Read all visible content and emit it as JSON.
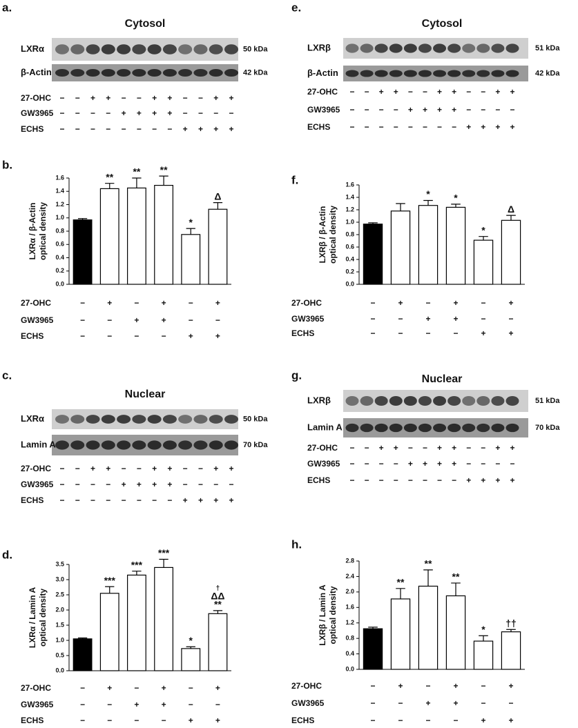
{
  "blots": [
    {
      "letter": "a.",
      "title": "Cytosol",
      "rows": [
        {
          "label": "LXRα",
          "kda": "50 kDa"
        },
        {
          "label": "β-Actin",
          "kda": "42 kDa"
        }
      ],
      "conditions": [
        {
          "name": "27-OHC",
          "signs": [
            "−",
            "−",
            "+",
            "+",
            "−",
            "−",
            "+",
            "+",
            "−",
            "−",
            "+",
            "+"
          ]
        },
        {
          "name": "GW3965",
          "signs": [
            "−",
            "−",
            "−",
            "−",
            "+",
            "+",
            "+",
            "+",
            "−",
            "−",
            "−",
            "−"
          ]
        },
        {
          "name": "ECHS",
          "signs": [
            "−",
            "−",
            "−",
            "−",
            "−",
            "−",
            "−",
            "−",
            "+",
            "+",
            "+",
            "+"
          ]
        }
      ]
    },
    {
      "letter": "e.",
      "title": "Cytosol",
      "rows": [
        {
          "label": "LXRβ",
          "kda": "51 kDa"
        },
        {
          "label": "β-Actin",
          "kda": "42 kDa"
        }
      ],
      "conditions": [
        {
          "name": "27-OHC",
          "signs": [
            "−",
            "−",
            "+",
            "+",
            "−",
            "−",
            "+",
            "+",
            "−",
            "−",
            "+",
            "+"
          ]
        },
        {
          "name": "GW3965",
          "signs": [
            "−",
            "−",
            "−",
            "−",
            "+",
            "+",
            "+",
            "+",
            "−",
            "−",
            "−",
            "−"
          ]
        },
        {
          "name": "ECHS",
          "signs": [
            "−",
            "−",
            "−",
            "−",
            "−",
            "−",
            "−",
            "−",
            "+",
            "+",
            "+",
            "+"
          ]
        }
      ]
    },
    {
      "letter": "c.",
      "title": "Nuclear",
      "rows": [
        {
          "label": "LXRα",
          "kda": "50 kDa"
        },
        {
          "label": "Lamin A",
          "kda": "70 kDa"
        }
      ],
      "conditions": [
        {
          "name": "27-OHC",
          "signs": [
            "−",
            "−",
            "+",
            "+",
            "−",
            "−",
            "+",
            "+",
            "−",
            "−",
            "+",
            "+"
          ]
        },
        {
          "name": "GW3965",
          "signs": [
            "−",
            "−",
            "−",
            "−",
            "+",
            "+",
            "+",
            "+",
            "−",
            "−",
            "−",
            "−"
          ]
        },
        {
          "name": "ECHS",
          "signs": [
            "−",
            "−",
            "−",
            "−",
            "−",
            "−",
            "−",
            "−",
            "+",
            "+",
            "+",
            "+"
          ]
        }
      ]
    },
    {
      "letter": "g.",
      "title": "Nuclear",
      "rows": [
        {
          "label": "LXRβ",
          "kda": "51 kDa"
        },
        {
          "label": "Lamin A",
          "kda": "70 kDa"
        }
      ],
      "conditions": [
        {
          "name": "27-OHC",
          "signs": [
            "−",
            "−",
            "+",
            "+",
            "−",
            "−",
            "+",
            "+",
            "−",
            "−",
            "+",
            "+"
          ]
        },
        {
          "name": "GW3965",
          "signs": [
            "−",
            "−",
            "−",
            "−",
            "+",
            "+",
            "+",
            "+",
            "−",
            "−",
            "−",
            "−"
          ]
        },
        {
          "name": "ECHS",
          "signs": [
            "−",
            "−",
            "−",
            "−",
            "−",
            "−",
            "−",
            "−",
            "+",
            "+",
            "+",
            "+"
          ]
        }
      ]
    }
  ],
  "chart_data": [
    {
      "type": "bar",
      "letter": "b.",
      "y_label": [
        "LXRα / β-Actin",
        "optical density"
      ],
      "values": [
        0.97,
        1.44,
        1.45,
        1.49,
        0.75,
        1.13
      ],
      "errors": [
        0.02,
        0.08,
        0.15,
        0.14,
        0.09,
        0.1
      ],
      "annotations": [
        null,
        [
          "**"
        ],
        [
          "**"
        ],
        [
          "**"
        ],
        [
          "*"
        ],
        [
          "Δ"
        ]
      ],
      "colors": [
        "#000000",
        "#ffffff",
        "#ffffff",
        "#ffffff",
        "#ffffff",
        "#ffffff"
      ],
      "ylim": [
        0,
        1.6
      ],
      "yticks": [
        {
          "value": 0,
          "label": "0.0"
        },
        0.2,
        0.4,
        0.6,
        0.8,
        {
          "value": 1,
          "label": "1.0"
        },
        1.2,
        1.4,
        1.6
      ],
      "conditions": [
        {
          "name": "27-OHC",
          "signs": [
            "−",
            "+",
            "−",
            "+",
            "−",
            "+"
          ]
        },
        {
          "name": "GW3965",
          "signs": [
            "−",
            "−",
            "+",
            "+",
            "−",
            "−"
          ]
        },
        {
          "name": "ECHS",
          "signs": [
            "−",
            "−",
            "−",
            "−",
            "+",
            "+"
          ]
        }
      ]
    },
    {
      "type": "bar",
      "letter": "f.",
      "y_label": [
        "LXRβ / β-Actin",
        "optical density"
      ],
      "values": [
        0.97,
        1.18,
        1.27,
        1.24,
        0.71,
        1.03
      ],
      "errors": [
        0.02,
        0.12,
        0.08,
        0.05,
        0.06,
        0.08
      ],
      "annotations": [
        null,
        null,
        [
          "*"
        ],
        [
          "*"
        ],
        [
          "*"
        ],
        [
          "Δ"
        ]
      ],
      "colors": [
        "#000000",
        "#ffffff",
        "#ffffff",
        "#ffffff",
        "#ffffff",
        "#ffffff"
      ],
      "ylim": [
        0,
        1.6
      ],
      "yticks": [
        {
          "value": 0,
          "label": "0.0"
        },
        0.2,
        0.4,
        0.6,
        0.8,
        {
          "value": 1,
          "label": "1.0"
        },
        1.2,
        1.4,
        1.6
      ],
      "conditions": [
        {
          "name": "27-OHC",
          "signs": [
            "−",
            "+",
            "−",
            "+",
            "−",
            "+"
          ]
        },
        {
          "name": "GW3965",
          "signs": [
            "−",
            "−",
            "+",
            "+",
            "−",
            "−"
          ]
        },
        {
          "name": "ECHS",
          "signs": [
            "−",
            "−",
            "−",
            "−",
            "+",
            "+"
          ]
        }
      ]
    },
    {
      "type": "bar",
      "letter": "d.",
      "y_label": [
        "LXRα / Lamin A",
        "optical density"
      ],
      "values": [
        1.05,
        2.55,
        3.15,
        3.4,
        0.73,
        1.88
      ],
      "errors": [
        0.03,
        0.22,
        0.13,
        0.27,
        0.06,
        0.1
      ],
      "annotations": [
        null,
        [
          "***"
        ],
        [
          "***"
        ],
        [
          "***"
        ],
        [
          "*"
        ],
        [
          "†",
          "ΔΔ",
          "**"
        ]
      ],
      "colors": [
        "#000000",
        "#ffffff",
        "#ffffff",
        "#ffffff",
        "#ffffff",
        "#ffffff"
      ],
      "ylim": [
        0,
        3.5
      ],
      "yticks": [
        {
          "value": 0,
          "label": "0.0"
        },
        0.5,
        {
          "value": 1,
          "label": "1.0"
        },
        1.5,
        {
          "value": 2,
          "label": "2.0"
        },
        2.5,
        {
          "value": 3,
          "label": "3.0"
        },
        3.5
      ],
      "conditions": [
        {
          "name": "27-OHC",
          "signs": [
            "−",
            "+",
            "−",
            "+",
            "−",
            "+"
          ]
        },
        {
          "name": "GW3965",
          "signs": [
            "−",
            "−",
            "+",
            "+",
            "−",
            "−"
          ]
        },
        {
          "name": "ECHS",
          "signs": [
            "−",
            "−",
            "−",
            "−",
            "+",
            "+"
          ]
        }
      ]
    },
    {
      "type": "bar",
      "letter": "h.",
      "y_label": [
        "LXRβ / Lamin A",
        "optical density"
      ],
      "values": [
        1.05,
        1.82,
        2.15,
        1.9,
        0.73,
        0.97
      ],
      "errors": [
        0.04,
        0.27,
        0.42,
        0.33,
        0.14,
        0.06
      ],
      "annotations": [
        null,
        [
          "**"
        ],
        [
          "**"
        ],
        [
          "**"
        ],
        [
          "*"
        ],
        [
          "††"
        ]
      ],
      "colors": [
        "#000000",
        "#ffffff",
        "#ffffff",
        "#ffffff",
        "#ffffff",
        "#ffffff"
      ],
      "ylim": [
        0,
        2.8
      ],
      "yticks": [
        {
          "value": 0,
          "label": "0.0"
        },
        0.4,
        0.8,
        1.2,
        1.6,
        {
          "value": 2,
          "label": "2.0"
        },
        2.4,
        2.8
      ],
      "conditions": [
        {
          "name": "27-OHC",
          "signs": [
            "−",
            "+",
            "−",
            "+",
            "−",
            "+"
          ]
        },
        {
          "name": "GW3965",
          "signs": [
            "−",
            "−",
            "+",
            "+",
            "−",
            "−"
          ]
        },
        {
          "name": "ECHS",
          "signs": [
            "−",
            "−",
            "−",
            "−",
            "+",
            "+"
          ]
        }
      ]
    }
  ]
}
